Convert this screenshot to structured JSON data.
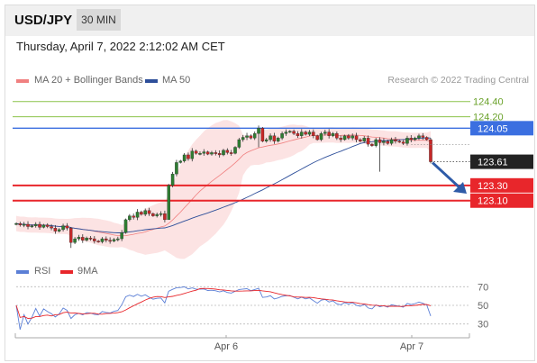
{
  "header": {
    "symbol": "USD/JPY",
    "timeframe": "30 MIN"
  },
  "timestamp": "Thursday, April 7, 2022 2:12:02 AM CET",
  "legend": {
    "ma_bb": {
      "label": "MA 20 + Bollinger Bands",
      "color": "#f08080"
    },
    "ma50": {
      "label": "MA 50",
      "color": "#2e4f9a"
    }
  },
  "copyright": "Research © 2022 Trading Central",
  "chart_data": [
    {
      "type": "candlestick",
      "ylim": [
        122.4,
        124.55
      ],
      "x_ticks": [
        "Apr 6",
        "Apr 7"
      ],
      "grid": false,
      "levels": [
        {
          "value": "124.40",
          "kind": "resistance",
          "color": "#8cc34a"
        },
        {
          "value": "124.20",
          "kind": "resistance",
          "color": "#8cc34a"
        },
        {
          "value": "124.05",
          "kind": "pivot",
          "color": "#3b6fe0"
        },
        {
          "value": "123.30",
          "kind": "support",
          "color": "#e8262b"
        },
        {
          "value": "123.10",
          "kind": "support",
          "color": "#e8262b"
        }
      ],
      "last_price": "123.61",
      "forecast": "down",
      "close": [
        122.8,
        122.78,
        122.79,
        122.76,
        122.77,
        122.79,
        122.75,
        122.78,
        122.76,
        122.74,
        122.7,
        122.72,
        122.77,
        122.74,
        122.55,
        122.6,
        122.62,
        122.58,
        122.61,
        122.6,
        122.57,
        122.56,
        122.6,
        122.58,
        122.57,
        122.59,
        122.6,
        122.68,
        122.85,
        122.9,
        122.88,
        122.95,
        122.92,
        122.97,
        122.93,
        122.9,
        122.92,
        122.93,
        122.85,
        123.3,
        123.45,
        123.6,
        123.62,
        123.7,
        123.65,
        123.75,
        123.72,
        123.72,
        123.74,
        123.71,
        123.73,
        123.72,
        123.7,
        123.76,
        123.73,
        123.72,
        123.8,
        123.9,
        123.93,
        123.95,
        123.92,
        123.98,
        124.05,
        123.88,
        123.9,
        123.95,
        123.88,
        123.92,
        123.98,
        124.0,
        124.01,
        123.98,
        123.95,
        124.0,
        123.97,
        124.0,
        123.95,
        123.9,
        123.98,
        124.0,
        123.95,
        123.98,
        123.92,
        123.9,
        123.95,
        123.92,
        123.95,
        123.9,
        123.88,
        123.92,
        123.84,
        123.82,
        123.9,
        123.86,
        123.88,
        123.85,
        123.9,
        123.88,
        123.87,
        123.85,
        123.92,
        123.9,
        123.92,
        123.95,
        123.93,
        123.9,
        123.61
      ]
    },
    {
      "type": "line",
      "legend": [
        "RSI",
        "9MA"
      ],
      "colors": {
        "rsi": "#5b7fd6",
        "ma9": "#e8262b"
      },
      "levels": [
        "70",
        "50",
        "30"
      ],
      "ylim": [
        20,
        80
      ]
    }
  ]
}
